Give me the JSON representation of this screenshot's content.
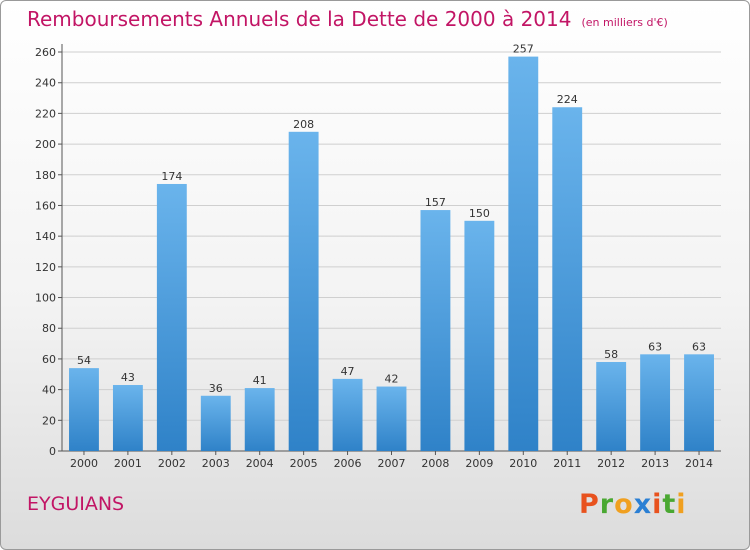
{
  "title": "Remboursements Annuels de la Dette de 2000 à 2014",
  "unit_note": "(en milliers d'€)",
  "commune": "EYGUIANS",
  "logo": {
    "letters": [
      "P",
      "r",
      "o",
      "x",
      "i",
      "t",
      "i"
    ],
    "colors": [
      "#e8521e",
      "#4aa832",
      "#f0a020",
      "#2a7fd4",
      "#e8521e",
      "#4aa832",
      "#f0a020"
    ]
  },
  "colors": {
    "title": "#c21565",
    "bar_light": "#6ab4ec",
    "bar_dark": "#2f82c8"
  },
  "chart_data": {
    "type": "bar",
    "title": "Remboursements Annuels de la Dette de 2000 à 2014",
    "categories": [
      "2000",
      "2001",
      "2002",
      "2003",
      "2004",
      "2005",
      "2006",
      "2007",
      "2008",
      "2009",
      "2010",
      "2011",
      "2012",
      "2013",
      "2014"
    ],
    "values": [
      54,
      43,
      174,
      36,
      41,
      208,
      47,
      42,
      157,
      150,
      257,
      224,
      58,
      63,
      63
    ],
    "ylim": [
      0,
      260
    ],
    "yticks": [
      0,
      20,
      40,
      60,
      80,
      100,
      120,
      140,
      160,
      180,
      200,
      220,
      240,
      260
    ],
    "grid": true
  }
}
